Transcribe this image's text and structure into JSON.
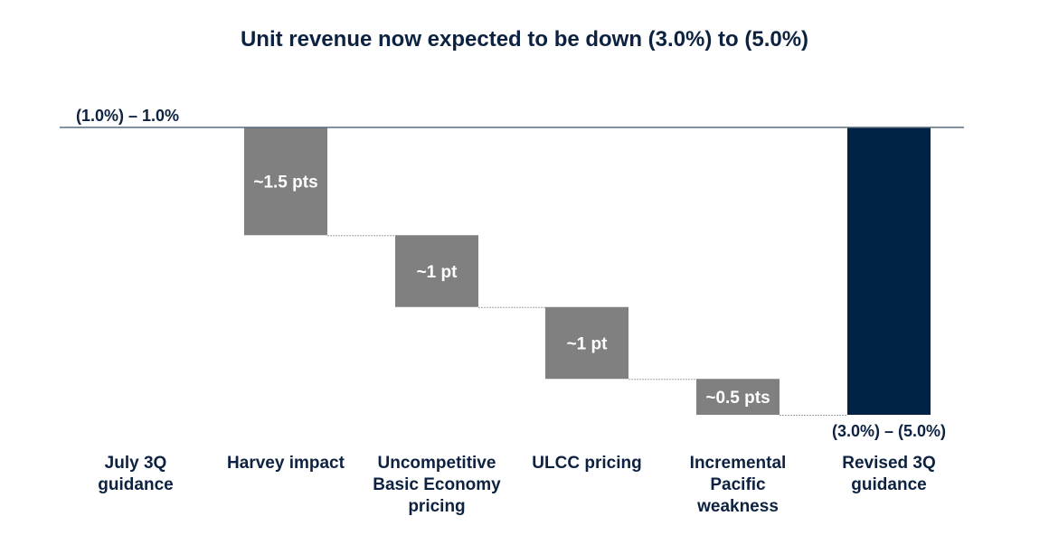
{
  "chart_data": {
    "type": "bar",
    "subtype": "waterfall",
    "title": "Unit revenue now expected to be down (3.0%) to (5.0%)",
    "xlabel": "",
    "ylabel": "",
    "grid": false,
    "legend": "none",
    "start_label": "(1.0%) – 1.0%",
    "end_label": "(3.0%) – (5.0%)",
    "ylim": [
      -4.0,
      0
    ],
    "categories": [
      "July 3Q guidance",
      "Harvey impact",
      "Uncompetitive Basic Economy pricing",
      "ULCC pricing",
      "Incremental Pacific weakness",
      "Revised 3Q guidance"
    ],
    "bars": [
      {
        "category": "July 3Q guidance",
        "kind": "start",
        "start": 0,
        "end": 0,
        "label": ""
      },
      {
        "category": "Harvey impact",
        "kind": "delta",
        "start": 0,
        "end": -1.5,
        "value": -1.5,
        "label": "~1.5 pts"
      },
      {
        "category": "Uncompetitive Basic Economy pricing",
        "kind": "delta",
        "start": -1.5,
        "end": -2.5,
        "value": -1.0,
        "label": "~1 pt"
      },
      {
        "category": "ULCC pricing",
        "kind": "delta",
        "start": -2.5,
        "end": -3.5,
        "value": -1.0,
        "label": "~1 pt"
      },
      {
        "category": "Incremental Pacific weakness",
        "kind": "delta",
        "start": -3.5,
        "end": -4.0,
        "value": -0.5,
        "label": "~0.5 pts"
      },
      {
        "category": "Revised 3Q guidance",
        "kind": "total",
        "start": 0,
        "end": -4.0,
        "value": -4.0,
        "label": ""
      }
    ],
    "colors": {
      "delta": "#808080",
      "total": "#002244",
      "baseline": "#5a6b7d",
      "text": "#0d2240",
      "bar_label": "#ffffff"
    }
  },
  "category_lines": [
    [
      "July 3Q",
      "guidance"
    ],
    [
      "Harvey impact"
    ],
    [
      "Uncompetitive",
      "Basic Economy",
      "pricing"
    ],
    [
      "ULCC pricing"
    ],
    [
      "Incremental",
      "Pacific",
      "weakness"
    ],
    [
      "Revised 3Q",
      "guidance"
    ]
  ]
}
